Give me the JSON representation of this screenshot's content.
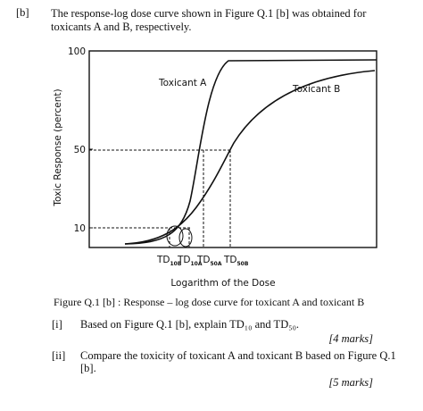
{
  "question": {
    "label": "[b]",
    "text_lines": [
      "The response-log dose curve shown in Figure Q.1 [b] was obtained for",
      "toxicants A and B, respectively."
    ]
  },
  "figure": {
    "ylabel": "Toxic Response (percent)",
    "xlabel": "Logarithm of the Dose",
    "yticks": [
      {
        "value": 100,
        "label": "100"
      },
      {
        "value": 50,
        "label": "50"
      },
      {
        "value": 10,
        "label": "10"
      }
    ],
    "curve_labels": [
      "Toxicant A",
      "Toxicant B"
    ],
    "td_labels": [
      {
        "main": "TD",
        "sub": "10B"
      },
      {
        "main": "TD",
        "sub": "10A"
      },
      {
        "main": "TD",
        "sub": "50A"
      },
      {
        "main": "TD",
        "sub": "50B"
      }
    ],
    "caption": "Figure Q.1 [b] : Response – log dose curve for toxicant A and toxicant B"
  },
  "parts": [
    {
      "label": "[i]",
      "lines": [
        "Based on Figure Q.1 [b], explain TD₁₀ and TD₅₀."
      ],
      "marks": "[4 marks]"
    },
    {
      "label": "[ii]",
      "lines": [
        "Compare the toxicity of toxicant A and toxicant B based on Figure Q.1",
        "[b]."
      ],
      "marks": "[5 marks]"
    }
  ]
}
